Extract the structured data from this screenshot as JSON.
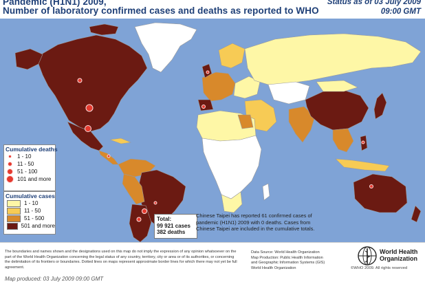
{
  "title": {
    "line1": "Pandemic (H1N1) 2009,",
    "line2": "Number of  laboratory confirmed cases and deaths as reported to WHO"
  },
  "status": {
    "line1": "Status as of 03 July 2009",
    "line2": "09:00 GMT"
  },
  "legend_deaths": {
    "title": "Cumulative deaths",
    "items": [
      "1 - 10",
      "11 - 50",
      "51 - 100",
      "101 and more"
    ],
    "color": "#e53a2f"
  },
  "legend_cases": {
    "title": "Cumulative cases",
    "items": [
      "1 - 10",
      "11 - 50",
      "51 - 500",
      "501 and more"
    ],
    "colors": [
      "#fef7a6",
      "#f7cb55",
      "#d8892b",
      "#6b1a12"
    ]
  },
  "totals": {
    "label": "Total:",
    "cases": "99 921 cases",
    "deaths": "382 deaths"
  },
  "taipei_note": "Chinese Taipei has reported 61 confirmed cases of pandemic (H1N1) 2009 with 0 deaths. Cases from Chinese Taipei are included in the cumulative totals.",
  "footer": {
    "disclaimer": "The boundaries and names shown and the designations used on this map do not imply the expression of any opinion whatsoever on the part of the World Health Organization concerning the legal status of any country, territory, city or area or of its authorities, or concerning the delimitation of its frontiers or boundaries. Dotted lines on maps represent approximate border lines for which there may not yet be full agreement.",
    "produced": "Map produced: 03 July 2009 09:00 GMT",
    "credits": [
      "Data Source: World Health Organization",
      "Map Production: Public Health Information",
      "and Geographic Information Systems (GIS)",
      "World Health Organization"
    ],
    "who_name": [
      "World Health",
      "Organization"
    ],
    "copyright": "©WHO 2009. All rights reserved"
  },
  "map_colors": {
    "ocean": "#7fa3d6",
    "no_data": "#ffffff",
    "border": "#9a9a9a"
  }
}
